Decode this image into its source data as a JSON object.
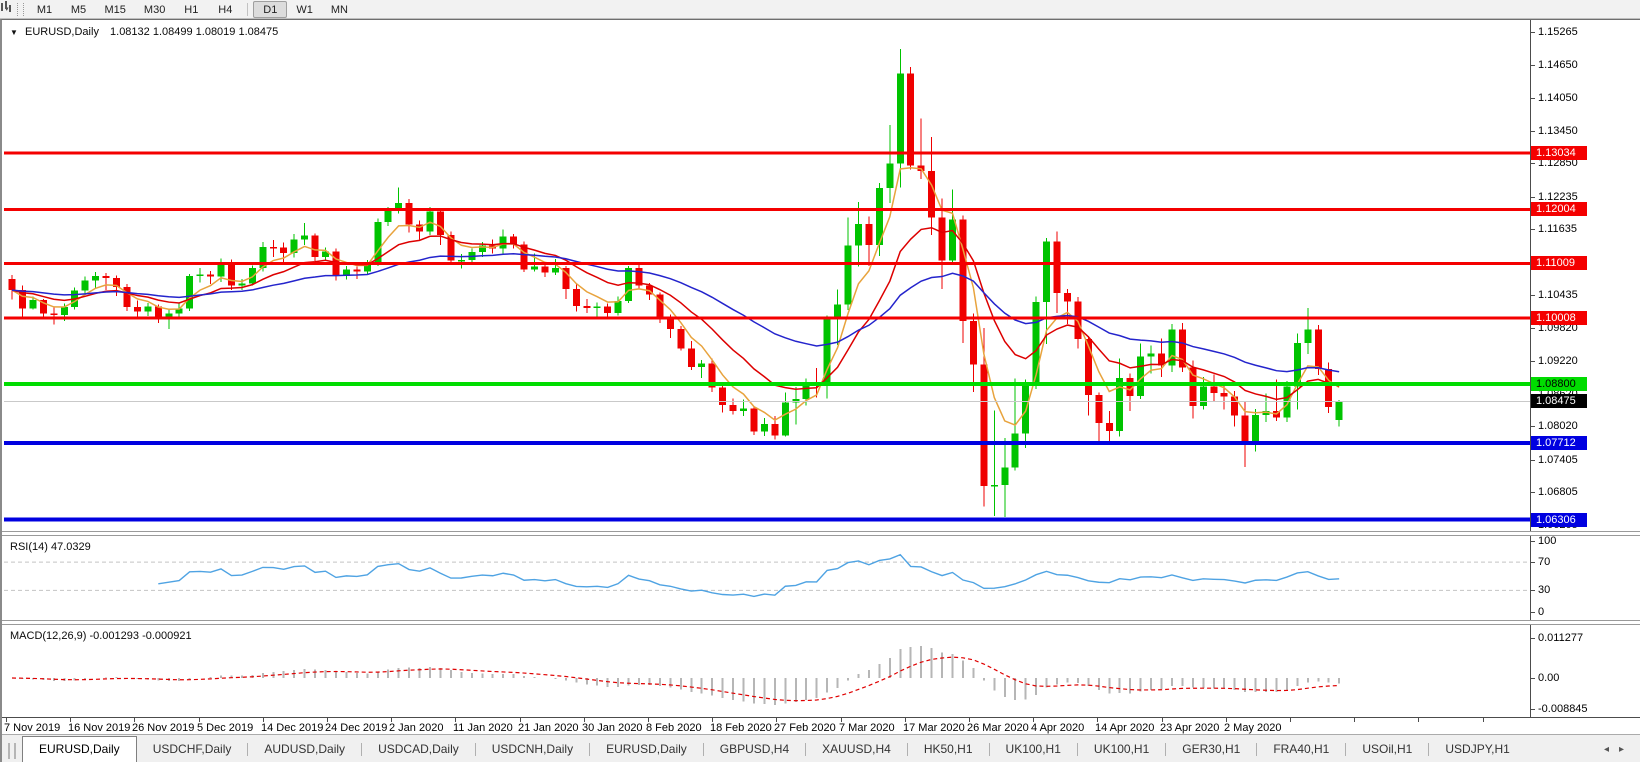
{
  "icons": {
    "caret_down": "▼",
    "toolbar_caret": "▾",
    "scroll_left": "◂",
    "scroll_right": "▸"
  },
  "toolbar": {
    "timeframes": [
      "M1",
      "M5",
      "M15",
      "M30",
      "H1",
      "H4",
      "D1",
      "W1",
      "MN"
    ],
    "active_timeframe": "D1"
  },
  "chart_header": {
    "symbol": "EURUSD,Daily",
    "ohlc": "1.08132 1.08499 1.08019 1.08475"
  },
  "main_axis": {
    "top_price": 1.15479,
    "bottom_price": 1.06097,
    "ticks": [
      "1.15265",
      "1.14650",
      "1.14050",
      "1.13450",
      "1.12850",
      "1.12235",
      "1.11635",
      "1.10435",
      "1.09820",
      "1.09220",
      "1.08620",
      "1.08020",
      "1.07405",
      "1.06805",
      "1.06205"
    ]
  },
  "hlines": [
    {
      "price": 1.13034,
      "label": "1.13034",
      "color": "#f40000",
      "width": 3,
      "label_bg": "#f40000",
      "label_fg": "#ffffff"
    },
    {
      "price": 1.12004,
      "label": "1.12004",
      "color": "#f40000",
      "width": 3,
      "label_bg": "#f40000",
      "label_fg": "#ffffff"
    },
    {
      "price": 1.11009,
      "label": "1.11009",
      "color": "#f40000",
      "width": 3,
      "label_bg": "#f40000",
      "label_fg": "#ffffff"
    },
    {
      "price": 1.10008,
      "label": "1.10008",
      "color": "#f40000",
      "width": 3,
      "label_bg": "#f40000",
      "label_fg": "#ffffff"
    },
    {
      "price": 1.088,
      "label": "1.08800",
      "color": "#00dc00",
      "width": 4,
      "label_bg": "#00dc00",
      "label_fg": "#000000"
    },
    {
      "price": 1.08475,
      "label": "1.08475",
      "color": "#c9c9c9",
      "width": 1,
      "label_bg": "#000000",
      "label_fg": "#ffffff"
    },
    {
      "price": 1.07712,
      "label": "1.07712",
      "color": "#0000e0",
      "width": 4,
      "label_bg": "#0000e0",
      "label_fg": "#ffffff"
    },
    {
      "price": 1.06306,
      "label": "1.06306",
      "color": "#0000e0",
      "width": 4,
      "label_bg": "#0000e0",
      "label_fg": "#ffffff"
    }
  ],
  "rsi": {
    "label": "RSI(14) 47.0329",
    "period": 14,
    "axis_labels": [
      100,
      70,
      30,
      0
    ],
    "levels": [
      70,
      30
    ],
    "line_color": "#4fa3e3",
    "level_color": "#c4c4c4"
  },
  "macd": {
    "label": "MACD(12,26,9) -0.001293 -0.000921",
    "params": [
      12,
      26,
      9
    ],
    "axis_labels": [
      "0.011277",
      "0.00",
      "-0.008845"
    ],
    "axis_values": [
      0.011277,
      0,
      -0.008845
    ],
    "top_value": 0.01495,
    "bottom_value": -0.01071,
    "hist_color": "#b6b6b6",
    "signal_color": "#e00000"
  },
  "dates": [
    "7 Nov 2019",
    "16 Nov 2019",
    "26 Nov 2019",
    "5 Dec 2019",
    "14 Dec 2019",
    "24 Dec 2019",
    "2 Jan 2020",
    "11 Jan 2020",
    "21 Jan 2020",
    "30 Jan 2020",
    "8 Feb 2020",
    "18 Feb 2020",
    "27 Feb 2020",
    "7 Mar 2020",
    "17 Mar 2020",
    "26 Mar 2020",
    "4 Apr 2020",
    "14 Apr 2020",
    "23 Apr 2020",
    "2 May 2020"
  ],
  "tabs": {
    "active_index": 0,
    "items": [
      "EURUSD,Daily",
      "USDCHF,Daily",
      "AUDUSD,Daily",
      "USDCAD,Daily",
      "USDCNH,Daily",
      "EURUSD,Daily",
      "GBPUSD,H4",
      "XAUUSD,H4",
      "HK50,H1",
      "UK100,H1",
      "UK100,H1",
      "GER30,H1",
      "FRA40,H1",
      "USOil,H1",
      "USDJPY,H1"
    ]
  },
  "chart_data": {
    "type": "candlestick",
    "title": "EURUSD,Daily",
    "current_ohlc": {
      "open": 1.08132,
      "high": 1.08499,
      "low": 1.08019,
      "close": 1.08475
    },
    "bull_color": "#00c300",
    "bear_color": "#ef0000",
    "ma_lines": [
      {
        "name": "fast",
        "type": "ema",
        "period": 5,
        "color": "#e8a33d"
      },
      {
        "name": "mid",
        "type": "ema",
        "period": 13,
        "color": "#dd0000"
      },
      {
        "name": "slow",
        "type": "ema",
        "period": 34,
        "color": "#2424cc"
      }
    ],
    "ylim": [
      1.06097,
      1.15479
    ],
    "candles": [
      [
        1.1072,
        1.108,
        1.1035,
        1.1052
      ],
      [
        1.1052,
        1.106,
        1.1002,
        1.1018
      ],
      [
        1.1018,
        1.104,
        1.1016,
        1.1034
      ],
      [
        1.1034,
        1.1036,
        1.1002,
        1.1009
      ],
      [
        1.1009,
        1.1021,
        1.0989,
        1.1006
      ],
      [
        1.1006,
        1.1027,
        1.0995,
        1.1021
      ],
      [
        1.1021,
        1.1057,
        1.1016,
        1.1051
      ],
      [
        1.1051,
        1.1077,
        1.1045,
        1.107
      ],
      [
        1.107,
        1.1085,
        1.1056,
        1.1078
      ],
      [
        1.1078,
        1.1083,
        1.1052,
        1.1074
      ],
      [
        1.1074,
        1.1079,
        1.1041,
        1.1058
      ],
      [
        1.1058,
        1.1063,
        1.1014,
        1.1021
      ],
      [
        1.1021,
        1.1033,
        1.1003,
        1.1013
      ],
      [
        1.1013,
        1.1028,
        1.1004,
        1.1022
      ],
      [
        1.1022,
        1.1026,
        1.0992,
        1.1
      ],
      [
        1.1,
        1.1017,
        1.0981,
        1.1009
      ],
      [
        1.1009,
        1.1028,
        1.1002,
        1.1018
      ],
      [
        1.1018,
        1.1082,
        1.1014,
        1.1078
      ],
      [
        1.1078,
        1.1093,
        1.1066,
        1.1081
      ],
      [
        1.1081,
        1.1087,
        1.1063,
        1.1077
      ],
      [
        1.1077,
        1.111,
        1.1067,
        1.1103
      ],
      [
        1.1103,
        1.1108,
        1.1052,
        1.106
      ],
      [
        1.106,
        1.1072,
        1.1052,
        1.1064
      ],
      [
        1.1064,
        1.1097,
        1.106,
        1.1093
      ],
      [
        1.1093,
        1.114,
        1.1086,
        1.1131
      ],
      [
        1.1131,
        1.1144,
        1.1113,
        1.113
      ],
      [
        1.113,
        1.1139,
        1.1102,
        1.112
      ],
      [
        1.112,
        1.1155,
        1.1112,
        1.1145
      ],
      [
        1.1145,
        1.1175,
        1.1135,
        1.1152
      ],
      [
        1.1152,
        1.1156,
        1.1105,
        1.1113
      ],
      [
        1.1113,
        1.113,
        1.1106,
        1.1123
      ],
      [
        1.1123,
        1.1128,
        1.107,
        1.1078
      ],
      [
        1.1078,
        1.1096,
        1.1071,
        1.109
      ],
      [
        1.109,
        1.1095,
        1.1072,
        1.1086
      ],
      [
        1.1086,
        1.1107,
        1.108,
        1.1098
      ],
      [
        1.1098,
        1.1183,
        1.1096,
        1.1177
      ],
      [
        1.1177,
        1.1205,
        1.117,
        1.1199
      ],
      [
        1.1199,
        1.124,
        1.1193,
        1.1212
      ],
      [
        1.1212,
        1.1219,
        1.1158,
        1.1172
      ],
      [
        1.1172,
        1.118,
        1.1145,
        1.116
      ],
      [
        1.116,
        1.1205,
        1.1153,
        1.1196
      ],
      [
        1.1196,
        1.1198,
        1.1135,
        1.1153
      ],
      [
        1.1153,
        1.116,
        1.1101,
        1.1106
      ],
      [
        1.1106,
        1.1118,
        1.1092,
        1.1107
      ],
      [
        1.1107,
        1.1128,
        1.1104,
        1.1122
      ],
      [
        1.1122,
        1.114,
        1.1113,
        1.1134
      ],
      [
        1.1134,
        1.1145,
        1.1119,
        1.1128
      ],
      [
        1.1128,
        1.1163,
        1.1119,
        1.115
      ],
      [
        1.115,
        1.1155,
        1.1128,
        1.1136
      ],
      [
        1.1136,
        1.1141,
        1.1085,
        1.109
      ],
      [
        1.109,
        1.1119,
        1.1086,
        1.1095
      ],
      [
        1.1095,
        1.1101,
        1.1076,
        1.1084
      ],
      [
        1.1084,
        1.1109,
        1.108,
        1.1093
      ],
      [
        1.1093,
        1.1096,
        1.1036,
        1.1054
      ],
      [
        1.1054,
        1.1063,
        1.1013,
        1.1023
      ],
      [
        1.1023,
        1.1036,
        1.101,
        1.1019
      ],
      [
        1.1019,
        1.1029,
        1.0998,
        1.1022
      ],
      [
        1.1022,
        1.1027,
        1.0999,
        1.101
      ],
      [
        1.101,
        1.104,
        1.1005,
        1.1032
      ],
      [
        1.1032,
        1.1096,
        1.1028,
        1.1093
      ],
      [
        1.1093,
        1.1099,
        1.1054,
        1.106
      ],
      [
        1.106,
        1.1065,
        1.1034,
        1.1044
      ],
      [
        1.1044,
        1.1048,
        1.0992,
        1.0999
      ],
      [
        1.0999,
        1.1007,
        1.0964,
        1.0981
      ],
      [
        1.0981,
        1.0986,
        1.0941,
        1.0945
      ],
      [
        1.0945,
        1.0959,
        1.0905,
        1.0911
      ],
      [
        1.0911,
        1.0924,
        1.0891,
        1.0917
      ],
      [
        1.0917,
        1.0926,
        1.0865,
        1.0873
      ],
      [
        1.0873,
        1.088,
        1.0827,
        1.0841
      ],
      [
        1.0841,
        1.0853,
        1.0824,
        1.083
      ],
      [
        1.083,
        1.0851,
        1.0821,
        1.0835
      ],
      [
        1.0835,
        1.0839,
        1.0786,
        1.0792
      ],
      [
        1.0792,
        1.0817,
        1.0784,
        1.0806
      ],
      [
        1.0806,
        1.0821,
        1.0778,
        1.0785
      ],
      [
        1.0785,
        1.0864,
        1.0783,
        1.0846
      ],
      [
        1.0846,
        1.0874,
        1.0805,
        1.0852
      ],
      [
        1.0852,
        1.089,
        1.084,
        1.0881
      ],
      [
        1.0881,
        1.0909,
        1.0855,
        1.088
      ],
      [
        1.088,
        1.1005,
        1.0853,
        1.1
      ],
      [
        1.1,
        1.1053,
        1.0951,
        1.1026
      ],
      [
        1.1026,
        1.1185,
        1.1015,
        1.1134
      ],
      [
        1.1134,
        1.1214,
        1.1095,
        1.1173
      ],
      [
        1.1173,
        1.1187,
        1.1096,
        1.1135
      ],
      [
        1.1135,
        1.1249,
        1.1115,
        1.1239
      ],
      [
        1.1239,
        1.1355,
        1.1212,
        1.1284
      ],
      [
        1.1284,
        1.1495,
        1.124,
        1.145
      ],
      [
        1.145,
        1.1462,
        1.1273,
        1.1281
      ],
      [
        1.1281,
        1.1367,
        1.1256,
        1.1271
      ],
      [
        1.1271,
        1.1333,
        1.1153,
        1.1185
      ],
      [
        1.1185,
        1.122,
        1.1054,
        1.1106
      ],
      [
        1.1106,
        1.1237,
        1.11,
        1.1182
      ],
      [
        1.1182,
        1.1189,
        1.0955,
        1.0995
      ],
      [
        1.0995,
        1.1009,
        1.0865,
        1.0915
      ],
      [
        1.0915,
        1.0982,
        1.0655,
        1.0692
      ],
      [
        1.0692,
        1.0831,
        1.0637,
        1.0694
      ],
      [
        1.0694,
        1.078,
        1.0635,
        1.0726
      ],
      [
        1.0726,
        1.089,
        1.0721,
        1.0789
      ],
      [
        1.0789,
        1.0888,
        1.0762,
        1.0881
      ],
      [
        1.0881,
        1.104,
        1.087,
        1.103
      ],
      [
        1.103,
        1.1148,
        1.0953,
        1.1141
      ],
      [
        1.1141,
        1.116,
        1.101,
        1.1047
      ],
      [
        1.1047,
        1.1054,
        1.099,
        1.1031
      ],
      [
        1.1031,
        1.1039,
        1.0945,
        1.0962
      ],
      [
        1.0962,
        1.0968,
        1.0822,
        1.0859
      ],
      [
        1.0859,
        1.0864,
        1.0773,
        1.0808
      ],
      [
        1.0808,
        1.083,
        1.0769,
        1.0793
      ],
      [
        1.0793,
        1.0926,
        1.0783,
        1.0891
      ],
      [
        1.0891,
        1.0899,
        1.083,
        1.0858
      ],
      [
        1.0858,
        1.0954,
        1.0852,
        1.093
      ],
      [
        1.093,
        1.095,
        1.0899,
        1.0936
      ],
      [
        1.0936,
        1.0963,
        1.0892,
        1.0914
      ],
      [
        1.0914,
        1.099,
        1.0902,
        1.098
      ],
      [
        1.098,
        1.0992,
        1.0902,
        1.091
      ],
      [
        1.091,
        1.0923,
        1.0816,
        1.0839
      ],
      [
        1.0839,
        1.0892,
        1.0833,
        1.0875
      ],
      [
        1.0875,
        1.0897,
        1.0848,
        1.0863
      ],
      [
        1.0863,
        1.0878,
        1.0833,
        1.0857
      ],
      [
        1.0857,
        1.0867,
        1.0802,
        1.0822
      ],
      [
        1.0822,
        1.0848,
        1.0727,
        1.0775
      ],
      [
        1.0775,
        1.0834,
        1.0756,
        1.0823
      ],
      [
        1.0823,
        1.0862,
        1.081,
        1.083
      ],
      [
        1.083,
        1.0888,
        1.0812,
        1.0818
      ],
      [
        1.0818,
        1.0885,
        1.081,
        1.0875
      ],
      [
        1.0875,
        1.0972,
        1.0833,
        1.0955
      ],
      [
        1.0955,
        1.1019,
        1.0935,
        1.098
      ],
      [
        1.098,
        1.0988,
        1.0896,
        1.0907
      ],
      [
        1.0907,
        1.0919,
        1.0826,
        1.0837
      ],
      [
        1.08132,
        1.08499,
        1.08019,
        1.08475
      ]
    ]
  }
}
